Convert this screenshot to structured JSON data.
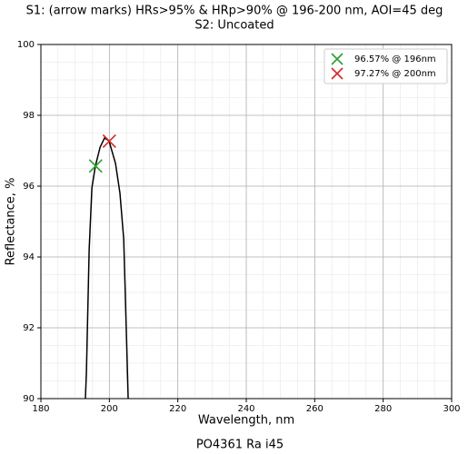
{
  "chart_data": {
    "type": "line",
    "title": [
      "S1: (arrow marks) HRs>95% & HRp>90% @ 196-200 nm, AOI=45 deg",
      "S2: Uncoated"
    ],
    "xlabel": "Wavelength, nm",
    "ylabel": "Reflectance, %",
    "footer": "PO4361 Ra i45",
    "xlim": [
      180,
      300
    ],
    "xticks": [
      180,
      200,
      220,
      240,
      260,
      280,
      300
    ],
    "ylim": [
      90,
      100
    ],
    "yticks": [
      90,
      92,
      94,
      96,
      98,
      100
    ],
    "grid": true,
    "x_minor_step": 5,
    "y_minor_step": 0.5,
    "legend": "upper right",
    "series": [
      {
        "color": "#000000",
        "x": [
          193.0,
          193.3,
          194.1,
          194.9,
          195.9,
          197.3,
          198.6,
          199.9,
          201.8,
          203.1,
          204.2,
          205.0,
          205.5
        ],
        "values": [
          90,
          90.74,
          94.2,
          95.95,
          96.56,
          97.1,
          97.36,
          97.28,
          96.64,
          95.8,
          94.5,
          91.77,
          90
        ]
      },
      {
        "name": "96.57% @ 196nm",
        "color": "#2ca02c",
        "marker": "x",
        "x": [
          196
        ],
        "values": [
          96.57
        ]
      },
      {
        "name": "97.27% @ 200nm",
        "color": "#d62728",
        "marker": "x",
        "x": [
          200
        ],
        "values": [
          97.27
        ]
      }
    ]
  }
}
